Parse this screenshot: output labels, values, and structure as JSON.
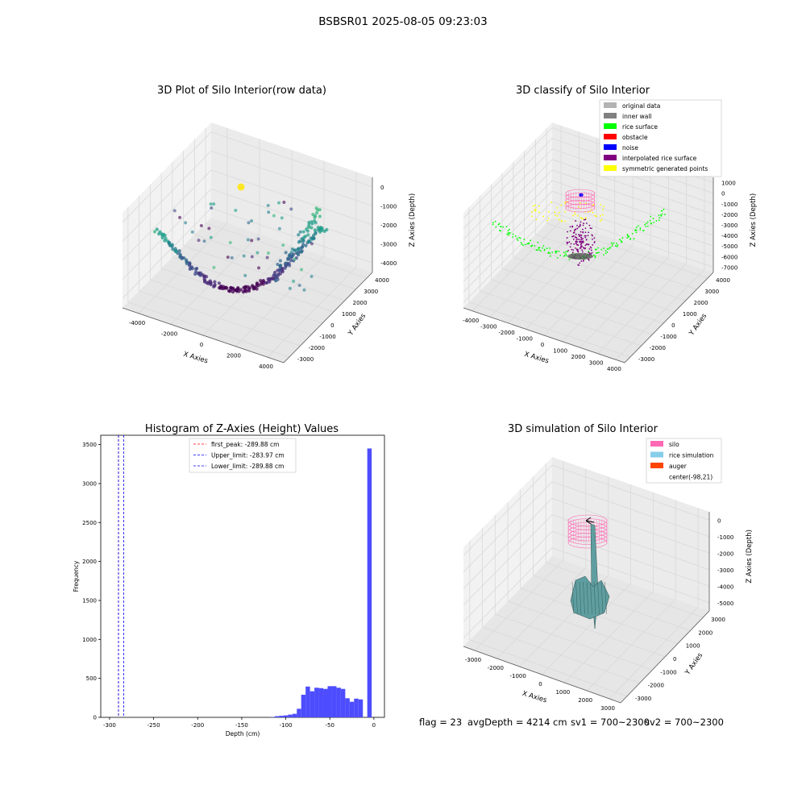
{
  "suptitle": "BSBSR01 2025-08-05 09:23:03",
  "status_line": {
    "flag": "flag = 23",
    "avg_depth": "avgDepth = 4214 cm",
    "sv1": "sv1 = 700~2300",
    "sv2": "sv2 = 700~2300"
  },
  "colors": {
    "grid": "#d9d9d9",
    "pane": "#f2f2f2",
    "original": "#b3b3b3",
    "inner_wall": "#808080",
    "rice_surface": "#00ff00",
    "obstacle": "#ff0000",
    "noise": "#0000ff",
    "interpolated": "#800080",
    "symmetric": "#ffff00",
    "silo": "#ff69b4",
    "rice_sim": "#87ceeb",
    "auger": "#ff4500",
    "hist_bar": "#4d4dff"
  },
  "chart_data": [
    {
      "type": "scatter",
      "projection": "3d",
      "title": "3D Plot of Silo Interior(row data)",
      "xlabel": "X Axies",
      "ylabel": "Y Axies",
      "zlabel": "Z Axies (Depth)",
      "x_ticks": [
        "-4000",
        "-2000",
        "0",
        "2000",
        "4000"
      ],
      "y_ticks": [
        "-3000",
        "-2000",
        "-1000",
        "0",
        "1000",
        "2000",
        "3000",
        "4000"
      ],
      "z_ticks": [
        "0",
        "-1000",
        "-2000",
        "-3000",
        "-4000"
      ],
      "xlim": [
        -4500,
        4500
      ],
      "ylim": [
        -3500,
        4500
      ],
      "zlim": [
        -4500,
        0
      ],
      "grid": true,
      "colormap": "viridis by depth"
    },
    {
      "type": "scatter",
      "projection": "3d",
      "title": "3D classify of Silo Interior",
      "xlabel": "X Axies",
      "ylabel": "Y Axies",
      "zlabel": "Z Axies (Depth)",
      "x_ticks": [
        "-4000",
        "-3000",
        "-2000",
        "-1000",
        "0",
        "1000",
        "2000",
        "3000",
        "4000"
      ],
      "y_ticks": [
        "-3000",
        "-2000",
        "-1000",
        "0",
        "1000",
        "2000",
        "3000",
        "4000"
      ],
      "z_ticks": [
        "1000",
        "0",
        "-1000",
        "-2000",
        "-3000",
        "-4000",
        "-5000",
        "-6000",
        "-7000"
      ],
      "legend_position": "top-right",
      "legend": [
        {
          "label": "original data",
          "color": "#b3b3b3"
        },
        {
          "label": "inner wall",
          "color": "#808080"
        },
        {
          "label": "rice surface",
          "color": "#00ff00"
        },
        {
          "label": "obstacle",
          "color": "#ff0000"
        },
        {
          "label": "noise",
          "color": "#0000ff"
        },
        {
          "label": "interpolated rice surface",
          "color": "#800080"
        },
        {
          "label": "symmetric generated points",
          "color": "#ffff00"
        }
      ],
      "grid": true
    },
    {
      "type": "bar",
      "title": "Histogram of Z-Axies (Height) Values",
      "xlabel": "Depth (cm)",
      "ylabel": "Frequency",
      "xlim": [
        -310,
        12
      ],
      "ylim": [
        0,
        3620
      ],
      "x_ticks": [
        -300,
        -250,
        -200,
        -150,
        -100,
        -50,
        0
      ],
      "y_ticks": [
        0,
        500,
        1000,
        1500,
        2000,
        2500,
        3000,
        3500
      ],
      "bin_width": 5,
      "bins": [
        {
          "x": -115,
          "value": 3
        },
        {
          "x": -110,
          "value": 15
        },
        {
          "x": -105,
          "value": 20
        },
        {
          "x": -100,
          "value": 25
        },
        {
          "x": -95,
          "value": 35
        },
        {
          "x": -90,
          "value": 45
        },
        {
          "x": -85,
          "value": 110
        },
        {
          "x": -80,
          "value": 290
        },
        {
          "x": -75,
          "value": 395
        },
        {
          "x": -70,
          "value": 335
        },
        {
          "x": -65,
          "value": 380
        },
        {
          "x": -60,
          "value": 375
        },
        {
          "x": -55,
          "value": 365
        },
        {
          "x": -50,
          "value": 400
        },
        {
          "x": -45,
          "value": 400
        },
        {
          "x": -40,
          "value": 380
        },
        {
          "x": -35,
          "value": 365
        },
        {
          "x": -30,
          "value": 245
        },
        {
          "x": -25,
          "value": 200
        },
        {
          "x": -20,
          "value": 240
        },
        {
          "x": -15,
          "value": 230
        },
        {
          "x": -5,
          "value": 3450
        }
      ],
      "vlines": [
        {
          "label": "first_peak: -289.88 cm",
          "x": -289.88,
          "color": "#ff0000"
        },
        {
          "label": "Upper_limit: -283.97 cm",
          "x": -283.97,
          "color": "#0000ff"
        },
        {
          "label": "Lower_limit: -289.88 cm",
          "x": -289.88,
          "color": "#0000ff"
        }
      ],
      "legend_position": "top-center"
    },
    {
      "type": "surface",
      "projection": "3d",
      "title": "3D simulation of Silo Interior",
      "xlabel": "X Axies",
      "ylabel": "Y Axies",
      "zlabel": "Z Axies (Depth)",
      "x_ticks": [
        "-3000",
        "-2000",
        "-1000",
        "0",
        "1000",
        "2000",
        "3000"
      ],
      "y_ticks": [
        "-3000",
        "-2000",
        "-1000",
        "0",
        "1000",
        "2000",
        "3000"
      ],
      "z_ticks": [
        "0",
        "-1000",
        "-2000",
        "-3000",
        "-4000",
        "-5000"
      ],
      "legend_position": "top-right",
      "legend": [
        {
          "label": "silo",
          "color": "#ff69b4"
        },
        {
          "label": "rice simulation",
          "color": "#87ceeb"
        },
        {
          "label": "auger",
          "color": "#ff4500"
        },
        {
          "label": "center(-98,21)",
          "color": ""
        }
      ],
      "grid": true
    }
  ]
}
